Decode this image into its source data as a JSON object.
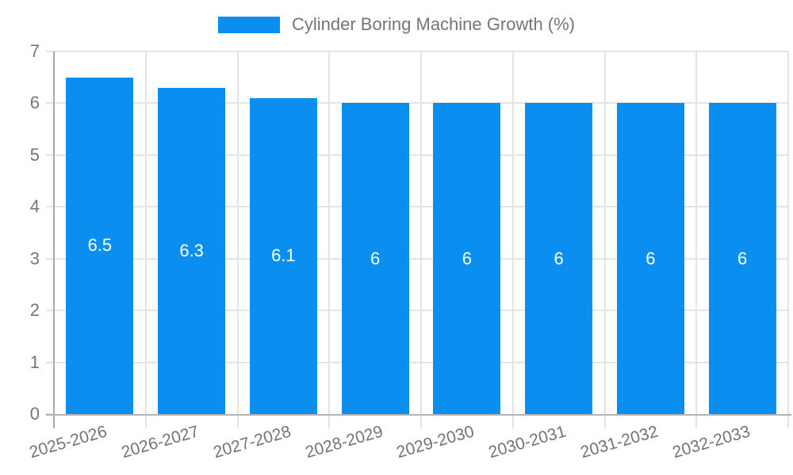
{
  "legend": {
    "label": "Cylinder Boring Machine Growth (%)"
  },
  "chart_data": {
    "type": "bar",
    "title": "",
    "xlabel": "",
    "ylabel": "",
    "categories": [
      "2025-2026",
      "2026-2027",
      "2027-2028",
      "2028-2029",
      "2029-2030",
      "2030-2031",
      "2031-2032",
      "2032-2033"
    ],
    "series": [
      {
        "name": "Cylinder Boring Machine Growth (%)",
        "values": [
          6.5,
          6.3,
          6.1,
          6,
          6,
          6,
          6,
          6
        ],
        "value_labels": [
          "6.5",
          "6.3",
          "6.1",
          "6",
          "6",
          "6",
          "6",
          "6"
        ]
      }
    ],
    "ylim": [
      0,
      7
    ],
    "yticks": [
      0,
      1,
      2,
      3,
      4,
      5,
      6,
      7
    ],
    "grid": true,
    "legend_position": "top-center",
    "x_label_rotation_deg": -16,
    "colors": {
      "bar": "#0a8ef0",
      "bar_value_label": "#ffffff",
      "axis_line": "#a9a9a9",
      "gridline": "#e4e4e4",
      "tick_label": "#757575",
      "legend_text": "#757575",
      "background": "#ffffff"
    }
  }
}
